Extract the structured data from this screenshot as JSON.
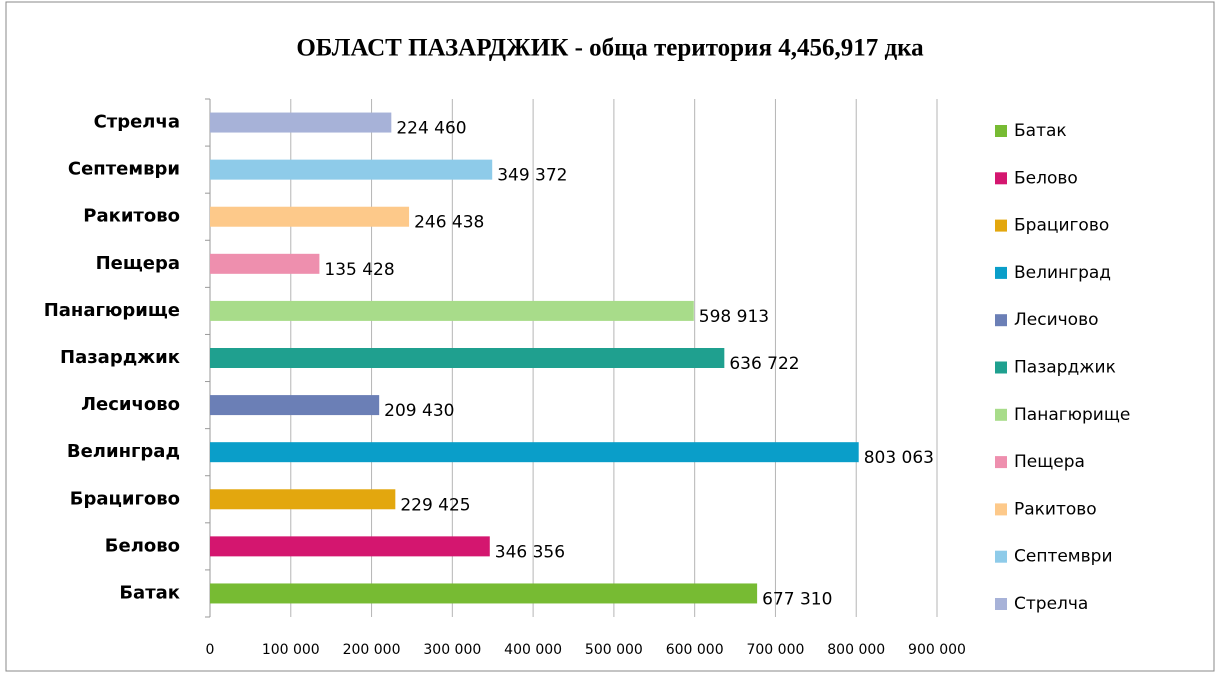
{
  "chart_data": {
    "type": "barh",
    "title": "ОБЛАСТ ПАЗАРДЖИК - обща територия 4,456,917 дка",
    "categories": [
      "Батак",
      "Белово",
      "Брацигово",
      "Велинград",
      "Лесичово",
      "Пазарджик",
      "Панагюрище",
      "Пещера",
      "Ракитово",
      "Септември",
      "Стрелча"
    ],
    "values": [
      677310,
      346356,
      229425,
      803063,
      209430,
      636722,
      598913,
      135428,
      246438,
      349372,
      224460
    ],
    "value_labels": [
      "677 310",
      "346 356",
      "229 425",
      "803 063",
      "209 430",
      "636 722",
      "598 913",
      "135 428",
      "246 438",
      "349 372",
      "224 460"
    ],
    "colors": [
      "#77bb33",
      "#d4166f",
      "#e3a70e",
      "#0a9ec9",
      "#6b7fb6",
      "#1fa08f",
      "#a8dc8a",
      "#ee8fae",
      "#fdc98a",
      "#8ecbe9",
      "#a7b2d8"
    ],
    "xlim": [
      0,
      900000
    ],
    "xticks": [
      0,
      {
        "value": 100000,
        "label": "100 000"
      },
      {
        "value": 200000,
        "label": "200 000"
      },
      {
        "value": 300000,
        "label": "300 000"
      },
      {
        "value": 400000,
        "label": "400 000"
      },
      {
        "value": 500000,
        "label": "500 000"
      },
      {
        "value": 600000,
        "label": "600 000"
      },
      {
        "value": 700000,
        "label": "700 000"
      },
      {
        "value": 800000,
        "label": "800 000"
      },
      {
        "value": 900000,
        "label": "900 000"
      }
    ],
    "grid": true,
    "legend": "right"
  }
}
